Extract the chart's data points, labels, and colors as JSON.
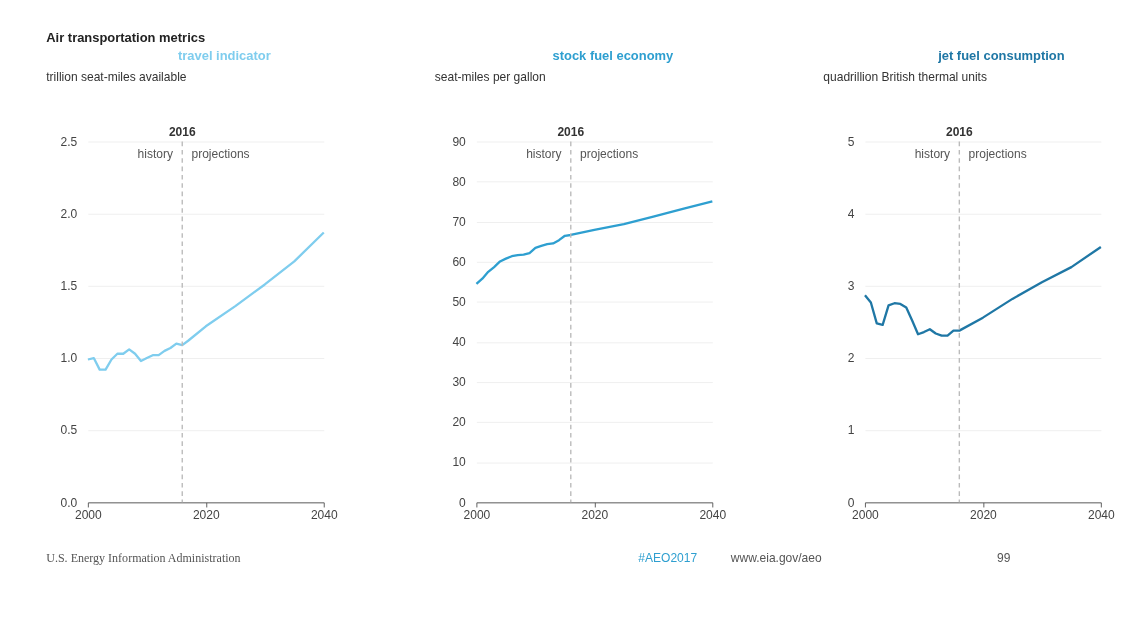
{
  "chart_data": [
    {
      "type": "line",
      "title": "Air transportation metrics",
      "ylabel": "trillion seat-miles available",
      "x": [
        2000,
        2001,
        2002,
        2003,
        2004,
        2005,
        2006,
        2007,
        2008,
        2009,
        2010,
        2011,
        2012,
        2013,
        2014,
        2015,
        2016,
        2017,
        2020,
        2025,
        2030,
        2035,
        2040
      ],
      "series": [
        {
          "name": "travel indicator",
          "color": "#7fcdee",
          "values": [
            0.99,
            1.0,
            0.92,
            0.92,
            0.99,
            1.03,
            1.03,
            1.06,
            1.03,
            0.98,
            1.0,
            1.02,
            1.02,
            1.05,
            1.07,
            1.1,
            1.09,
            1.12,
            1.22,
            1.36,
            1.51,
            1.67,
            1.87
          ]
        }
      ],
      "xlim": [
        2000,
        2040
      ],
      "xticks": [
        2000,
        2020,
        2040
      ],
      "ylim": [
        0,
        2.5
      ],
      "yticks": [
        {
          "value": 0,
          "label": "0.0"
        },
        0.5,
        {
          "value": 1,
          "label": "1.0"
        },
        1.5,
        {
          "value": 2,
          "label": "2.0"
        },
        2.5
      ],
      "grid": "y",
      "legend": false,
      "ref_lines": [
        {
          "axis": "x",
          "value": 2016,
          "label": "2016",
          "color": "#bbbbbb",
          "line_style": "dashed"
        }
      ],
      "annotations": [
        "history",
        "projections",
        "U.S. Energy Information Administration",
        "#AEO2017",
        "www.eia.gov/aeo",
        "99"
      ]
    },
    {
      "type": "line",
      "ylabel": "seat-miles per gallon",
      "x": [
        2000,
        2001,
        2002,
        2003,
        2004,
        2005,
        2006,
        2007,
        2008,
        2009,
        2010,
        2011,
        2012,
        2013,
        2014,
        2015,
        2016,
        2020,
        2025,
        2030,
        2035,
        2040
      ],
      "series": [
        {
          "name": "stock fuel economy",
          "color": "#2e9fd0",
          "values": [
            54.5,
            55.8,
            57.5,
            58.7,
            60.1,
            60.8,
            61.4,
            61.7,
            61.8,
            62.2,
            63.5,
            64.0,
            64.4,
            64.6,
            65.4,
            66.5,
            66.7,
            68.0,
            69.4,
            71.3,
            73.2,
            75.1
          ]
        }
      ],
      "xlim": [
        2000,
        2040
      ],
      "xticks": [
        2000,
        2020,
        2040
      ],
      "ylim": [
        0,
        90
      ],
      "yticks": [
        0,
        10,
        20,
        30,
        40,
        50,
        60,
        70,
        80,
        90
      ],
      "grid": "y",
      "legend": false,
      "ref_lines": [
        {
          "axis": "x",
          "value": 2016,
          "label": "2016",
          "color": "#bbbbbb",
          "line_style": "dashed"
        }
      ],
      "annotations": [
        "history",
        "projections"
      ]
    },
    {
      "type": "line",
      "ylabel": "quadrillion British thermal units",
      "x": [
        2000,
        2001,
        2002,
        2003,
        2004,
        2005,
        2006,
        2007,
        2008,
        2009,
        2010,
        2011,
        2012,
        2013,
        2014,
        2015,
        2016,
        2020,
        2025,
        2030,
        2035,
        2040
      ],
      "series": [
        {
          "name": "jet fuel consumption",
          "color": "#1f77a5",
          "values": [
            2.87,
            2.77,
            2.48,
            2.46,
            2.73,
            2.76,
            2.75,
            2.7,
            2.52,
            2.33,
            2.36,
            2.4,
            2.34,
            2.31,
            2.31,
            2.38,
            2.38,
            2.56,
            2.82,
            3.05,
            3.26,
            3.54
          ]
        }
      ],
      "xlim": [
        2000,
        2040
      ],
      "xticks": [
        2000,
        2020,
        2040
      ],
      "ylim": [
        0,
        5
      ],
      "yticks": [
        0,
        1,
        2,
        3,
        4,
        5
      ],
      "grid": "y",
      "legend": false,
      "ref_lines": [
        {
          "axis": "x",
          "value": 2016,
          "label": "2016",
          "color": "#bbbbbb",
          "line_style": "dashed"
        }
      ],
      "annotations": [
        "history",
        "projections"
      ]
    }
  ]
}
